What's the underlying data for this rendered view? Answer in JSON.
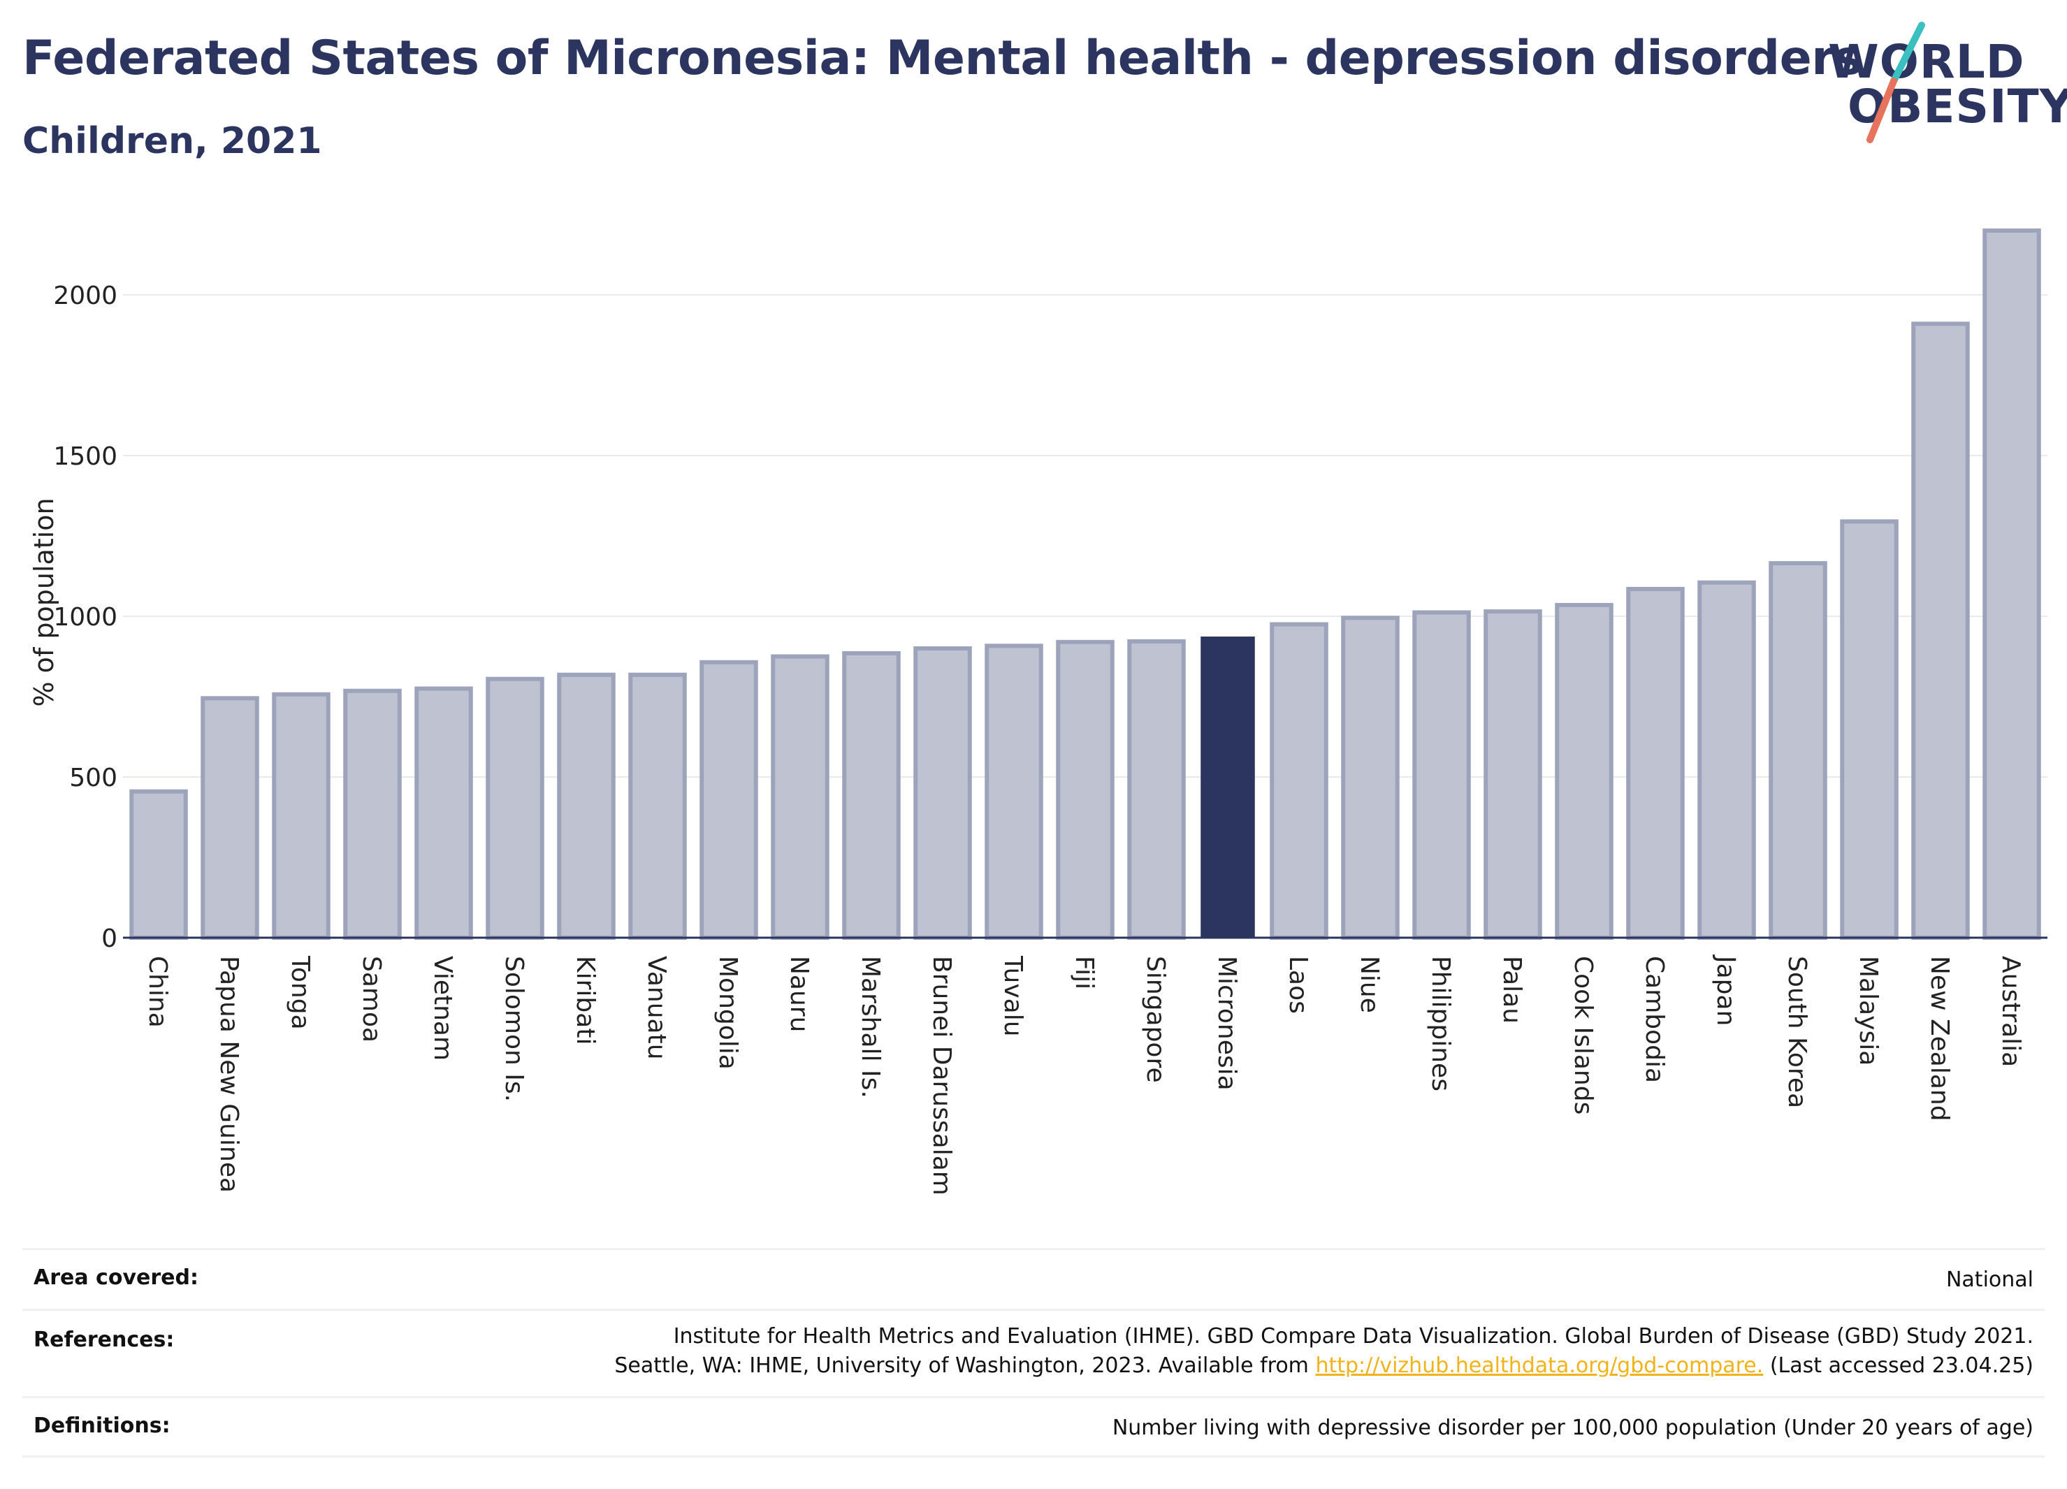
{
  "header": {
    "title": "Federated States of Micronesia: Mental health - depression disorders",
    "subtitle": "Children, 2021"
  },
  "logo": {
    "line1": "WORLD",
    "line2": "OBESITY"
  },
  "colors": {
    "bar": "#bfc3d1",
    "bar_border": "#9ca3ba",
    "highlight": "#2b3560",
    "grid": "#e8eaf0",
    "logo_teal": "#3bbfbf",
    "logo_coral": "#e8735c"
  },
  "chart_data": {
    "type": "bar",
    "ylabel": "% of population",
    "ylim": [
      0,
      2200
    ],
    "yticks": [
      0,
      500,
      1000,
      1500,
      2000
    ],
    "grid": true,
    "highlight": "Micronesia",
    "categories": [
      "China",
      "Papua New Guinea",
      "Tonga",
      "Samoa",
      "Vietnam",
      "Solomon Is.",
      "Kiribati",
      "Vanuatu",
      "Mongolia",
      "Nauru",
      "Marshall Is.",
      "Brunei Darussalam",
      "Tuvalu",
      "Fiji",
      "Singapore",
      "Micronesia",
      "Laos",
      "Niue",
      "Philippines",
      "Palau",
      "Cook Islands",
      "Cambodia",
      "Japan",
      "South Korea",
      "Malaysia",
      "New Zealand",
      "Australia"
    ],
    "values": [
      455,
      745,
      757,
      768,
      775,
      805,
      818,
      818,
      857,
      875,
      885,
      900,
      908,
      920,
      922,
      937,
      975,
      995,
      1012,
      1015,
      1035,
      1085,
      1105,
      1165,
      1295,
      1910,
      2200
    ]
  },
  "footer": {
    "area_label": "Area covered:",
    "area_value": "National",
    "references_label": "References:",
    "references_line1": "Institute for Health Metrics and Evaluation (IHME). GBD Compare Data Visualization. Global Burden of Disease (GBD) Study 2021.",
    "references_line2_pre": "Seattle, WA: IHME, University of Washington, 2023. Available from ",
    "references_link": "http://vizhub.healthdata.org/gbd-compare.",
    "references_line2_post": " (Last accessed 23.04.25)",
    "definitions_label": "Definitions:",
    "definitions_value": "Number living with depressive disorder per 100,000 population (Under 20 years of age)"
  }
}
